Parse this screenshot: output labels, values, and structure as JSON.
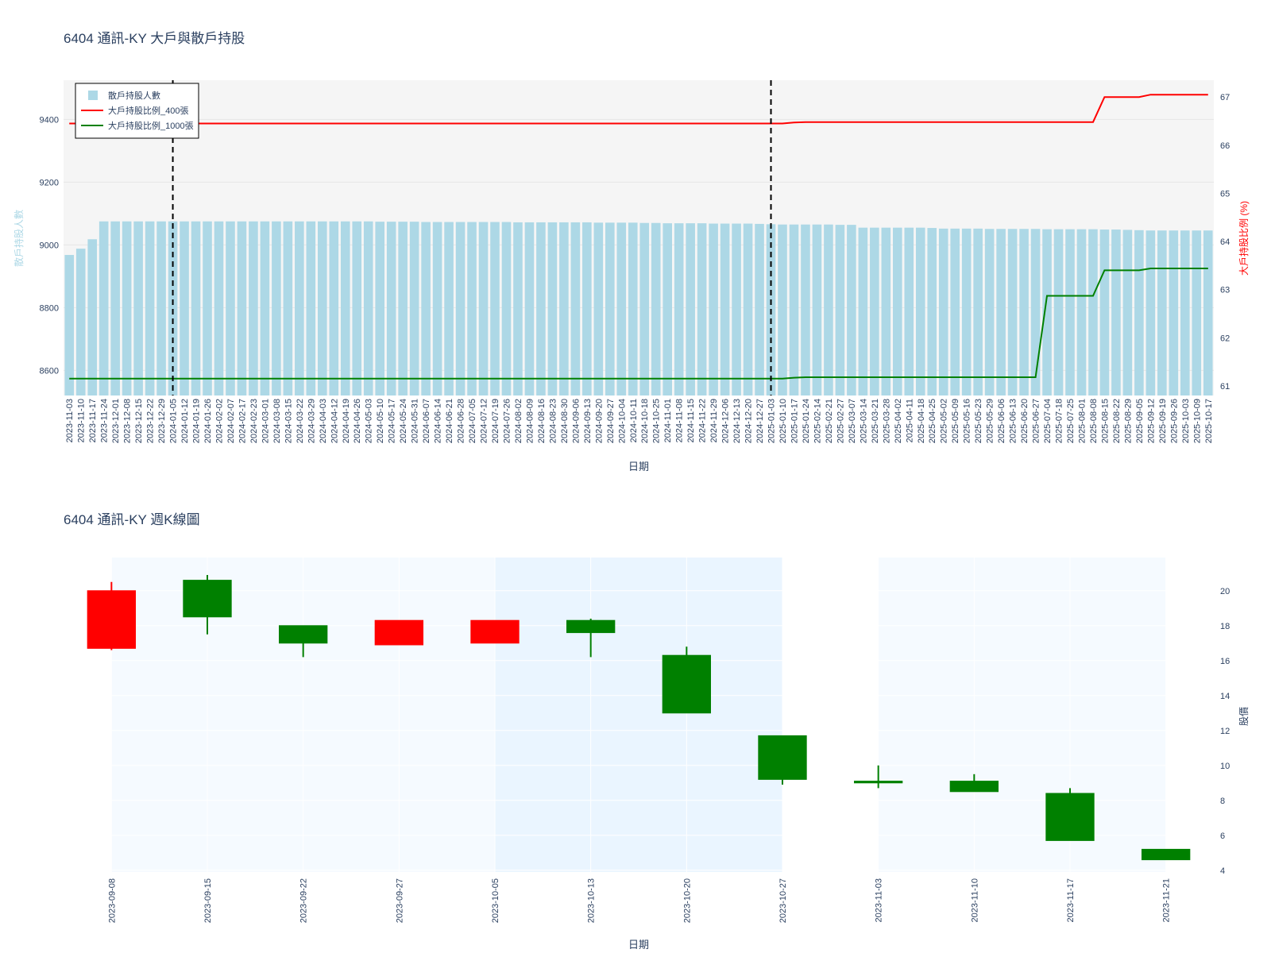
{
  "chart_data": [
    {
      "type": "bar+line",
      "title": "6404 通訊-KY 大戶與散戶持股",
      "xlabel": "日期",
      "ylabel_left": "散戶持股人數",
      "ylabel_right": "大戶持股比例 (%)",
      "ylim_left": [
        8520,
        9525
      ],
      "ylim_right": [
        60.8,
        67.35
      ],
      "yticks_left": [
        8600,
        8800,
        9000,
        9200,
        9400
      ],
      "yticks_right": [
        61,
        62,
        63,
        64,
        65,
        66,
        67
      ],
      "legend_position": "top-left",
      "vlines": [
        "2024-01-05",
        "2025-01-03"
      ],
      "colors": {
        "bars": "#add8e6",
        "line_400": "#ff0000",
        "line_1000": "#008000",
        "plot_bg": "#f5f5f5"
      },
      "dates": [
        "2023-11-03",
        "2023-11-10",
        "2023-11-17",
        "2023-11-24",
        "2023-12-01",
        "2023-12-08",
        "2023-12-15",
        "2023-12-22",
        "2023-12-29",
        "2024-01-05",
        "2024-01-12",
        "2024-01-19",
        "2024-01-26",
        "2024-02-02",
        "2024-02-07",
        "2024-02-17",
        "2024-02-23",
        "2024-03-01",
        "2024-03-08",
        "2024-03-15",
        "2024-03-22",
        "2024-03-29",
        "2024-04-03",
        "2024-04-12",
        "2024-04-19",
        "2024-04-26",
        "2024-05-03",
        "2024-05-10",
        "2024-05-17",
        "2024-05-24",
        "2024-05-31",
        "2024-06-07",
        "2024-06-14",
        "2024-06-21",
        "2024-06-28",
        "2024-07-05",
        "2024-07-12",
        "2024-07-19",
        "2024-07-26",
        "2024-08-02",
        "2024-08-09",
        "2024-08-16",
        "2024-08-23",
        "2024-08-30",
        "2024-09-06",
        "2024-09-13",
        "2024-09-20",
        "2024-09-27",
        "2024-10-04",
        "2024-10-11",
        "2024-10-18",
        "2024-10-25",
        "2024-11-01",
        "2024-11-08",
        "2024-11-15",
        "2024-11-22",
        "2024-11-29",
        "2024-12-06",
        "2024-12-13",
        "2024-12-20",
        "2024-12-27",
        "2025-01-03",
        "2025-01-10",
        "2025-01-17",
        "2025-01-24",
        "2025-02-14",
        "2025-02-21",
        "2025-02-27",
        "2025-03-07",
        "2025-03-14",
        "2025-03-21",
        "2025-03-28",
        "2025-04-02",
        "2025-04-11",
        "2025-04-18",
        "2025-04-25",
        "2025-05-02",
        "2025-05-09",
        "2025-05-16",
        "2025-05-23",
        "2025-05-29",
        "2025-06-06",
        "2025-06-13",
        "2025-06-20",
        "2025-06-27",
        "2025-07-04",
        "2025-07-18",
        "2025-07-25",
        "2025-08-01",
        "2025-08-08",
        "2025-08-15",
        "2025-08-22",
        "2025-08-29",
        "2025-09-05",
        "2025-09-12",
        "2025-09-19",
        "2025-09-26",
        "2025-10-03",
        "2025-10-09",
        "2025-10-17"
      ],
      "series": [
        {
          "name": "散戶持股人數",
          "kind": "bar",
          "axis": "left",
          "values": [
            8968,
            8988,
            9018,
            9075,
            9075,
            9075,
            9075,
            9075,
            9075,
            9075,
            9075,
            9075,
            9075,
            9075,
            9075,
            9075,
            9075,
            9075,
            9075,
            9075,
            9075,
            9075,
            9075,
            9075,
            9075,
            9075,
            9075,
            9074,
            9074,
            9074,
            9074,
            9073,
            9073,
            9073,
            9073,
            9073,
            9073,
            9073,
            9073,
            9072,
            9072,
            9072,
            9072,
            9072,
            9072,
            9072,
            9071,
            9071,
            9071,
            9071,
            9070,
            9070,
            9069,
            9069,
            9069,
            9069,
            9068,
            9068,
            9068,
            9068,
            9067,
            9066,
            9065,
            9065,
            9065,
            9065,
            9065,
            9064,
            9064,
            9055,
            9055,
            9055,
            9055,
            9055,
            9055,
            9054,
            9052,
            9052,
            9052,
            9052,
            9051,
            9051,
            9051,
            9051,
            9051,
            9050,
            9050,
            9050,
            9050,
            9050,
            9049,
            9049,
            9048,
            9047,
            9046,
            9046,
            9046,
            9046,
            9046,
            9046
          ]
        },
        {
          "name": "大戶持股比例_400張",
          "kind": "line",
          "axis": "right",
          "values": [
            66.45,
            66.45,
            66.45,
            66.45,
            66.45,
            66.45,
            66.45,
            66.45,
            66.45,
            66.45,
            66.45,
            66.45,
            66.45,
            66.45,
            66.45,
            66.45,
            66.45,
            66.45,
            66.45,
            66.45,
            66.45,
            66.45,
            66.45,
            66.45,
            66.45,
            66.45,
            66.45,
            66.45,
            66.45,
            66.45,
            66.45,
            66.45,
            66.45,
            66.45,
            66.45,
            66.45,
            66.45,
            66.45,
            66.45,
            66.45,
            66.45,
            66.45,
            66.45,
            66.45,
            66.45,
            66.45,
            66.45,
            66.45,
            66.45,
            66.45,
            66.45,
            66.45,
            66.45,
            66.45,
            66.45,
            66.45,
            66.45,
            66.45,
            66.45,
            66.45,
            66.45,
            66.45,
            66.45,
            66.47,
            66.48,
            66.48,
            66.48,
            66.48,
            66.48,
            66.48,
            66.48,
            66.48,
            66.48,
            66.48,
            66.48,
            66.48,
            66.48,
            66.48,
            66.48,
            66.48,
            66.48,
            66.48,
            66.48,
            66.48,
            66.48,
            66.48,
            66.48,
            66.48,
            66.48,
            66.48,
            67.0,
            67.0,
            67.0,
            67.0,
            67.05,
            67.05,
            67.05,
            67.05,
            67.05,
            67.05
          ]
        },
        {
          "name": "大戶持股比例_1000張",
          "kind": "line",
          "axis": "right",
          "values": [
            61.15,
            61.15,
            61.15,
            61.15,
            61.15,
            61.15,
            61.15,
            61.15,
            61.15,
            61.15,
            61.15,
            61.15,
            61.15,
            61.15,
            61.15,
            61.15,
            61.15,
            61.15,
            61.15,
            61.15,
            61.15,
            61.15,
            61.15,
            61.15,
            61.15,
            61.15,
            61.15,
            61.15,
            61.15,
            61.15,
            61.15,
            61.15,
            61.15,
            61.15,
            61.15,
            61.15,
            61.15,
            61.15,
            61.15,
            61.15,
            61.15,
            61.15,
            61.15,
            61.15,
            61.15,
            61.15,
            61.15,
            61.15,
            61.15,
            61.15,
            61.15,
            61.15,
            61.15,
            61.15,
            61.15,
            61.15,
            61.15,
            61.15,
            61.15,
            61.15,
            61.15,
            61.15,
            61.15,
            61.17,
            61.18,
            61.18,
            61.18,
            61.18,
            61.18,
            61.18,
            61.18,
            61.18,
            61.18,
            61.18,
            61.18,
            61.18,
            61.18,
            61.18,
            61.18,
            61.18,
            61.18,
            61.18,
            61.18,
            61.18,
            61.18,
            62.87,
            62.87,
            62.87,
            62.87,
            62.87,
            63.4,
            63.4,
            63.4,
            63.4,
            63.44,
            63.44,
            63.44,
            63.44,
            63.44,
            63.44
          ]
        }
      ]
    },
    {
      "type": "candlestick",
      "title": "6404 通訊-KY 週K線圖",
      "xlabel": "日期",
      "ylabel": "股價",
      "ylim": [
        3.9,
        21.9
      ],
      "yticks": [
        4,
        6,
        8,
        10,
        12,
        14,
        16,
        18,
        20
      ],
      "colors": {
        "up": "#ff0000",
        "down": "#008000"
      },
      "shaded_periods": [
        {
          "from": "2023-09-08",
          "to": "2023-10-05",
          "color": "#f5faff"
        },
        {
          "from": "2023-10-05",
          "to": "2023-10-27",
          "color": "#eaf5ff"
        },
        {
          "from": "2023-11-03",
          "to": "2023-11-21",
          "color": "#f5faff"
        }
      ],
      "candles": [
        {
          "date": "2023-09-08",
          "open": 16.7,
          "high": 20.5,
          "low": 16.6,
          "close": 20.0
        },
        {
          "date": "2023-09-15",
          "open": 20.6,
          "high": 20.9,
          "low": 17.5,
          "close": 18.5
        },
        {
          "date": "2023-09-22",
          "open": 18.0,
          "high": 18.0,
          "low": 16.2,
          "close": 17.0
        },
        {
          "date": "2023-09-27",
          "open": 16.9,
          "high": 18.3,
          "low": 16.9,
          "close": 18.3
        },
        {
          "date": "2023-10-05",
          "open": 17.0,
          "high": 18.3,
          "low": 17.0,
          "close": 18.3
        },
        {
          "date": "2023-10-13",
          "open": 18.3,
          "high": 18.4,
          "low": 16.2,
          "close": 17.6
        },
        {
          "date": "2023-10-20",
          "open": 16.3,
          "high": 16.8,
          "low": 13.0,
          "close": 13.0
        },
        {
          "date": "2023-10-27",
          "open": 11.7,
          "high": 11.7,
          "low": 8.9,
          "close": 9.2
        },
        {
          "date": "2023-11-03",
          "open": 9.1,
          "high": 10.0,
          "low": 8.7,
          "close": 9.0
        },
        {
          "date": "2023-11-10",
          "open": 9.1,
          "high": 9.5,
          "low": 8.5,
          "close": 8.5
        },
        {
          "date": "2023-11-17",
          "open": 8.4,
          "high": 8.7,
          "low": 5.7,
          "close": 5.7
        },
        {
          "date": "2023-11-21",
          "open": 5.2,
          "high": 5.2,
          "low": 4.6,
          "close": 4.6
        }
      ]
    }
  ]
}
